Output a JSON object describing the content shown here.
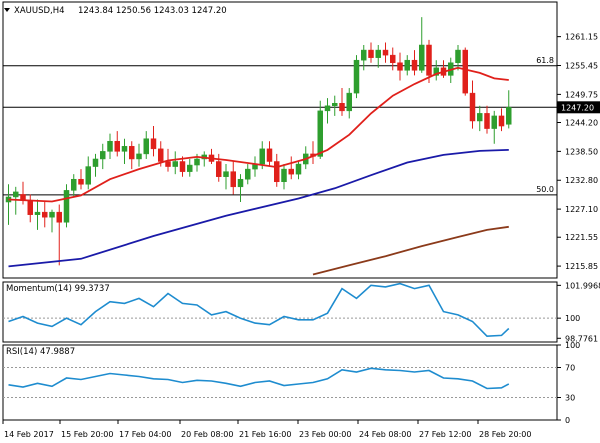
{
  "chart_data": {
    "type": "candlestick",
    "symbol_header": "XAUUSD,H4",
    "ohlc_header": "1243.84 1250.56 1243.03 1247.20",
    "colors": {
      "bull": "#2e9e2e",
      "bear": "#e0201b",
      "sma20": "#e0201b",
      "sma100": "#1a1aa8",
      "sma200": "#8b3a1a",
      "indicator": "#1e8ccf",
      "grid_line": "#000000",
      "price_tag_bg": "#000000"
    },
    "price_axis": {
      "range": [
        1213.5,
        1267.2
      ],
      "ticks": [
        "1261.15",
        "1255.45",
        "1249.75",
        "1244.20",
        "1238.50",
        "1232.80",
        "1227.10",
        "1221.55",
        "1215.85"
      ],
      "current_price_label": "1247.20"
    },
    "horizontal_levels": [
      {
        "label": "61.8",
        "value": 1255.4
      },
      {
        "label": "",
        "value": 1247.2
      },
      {
        "label": "50.0",
        "value": 1229.9
      }
    ],
    "x_labels": [
      "14 Feb 2017",
      "15 Feb 20:00",
      "17 Feb 04:00",
      "20 Feb 08:00",
      "21 Feb 16:00",
      "23 Feb 00:00",
      "24 Feb 08:00",
      "27 Feb 12:00",
      "28 Feb 20:00"
    ],
    "candles": [
      [
        1228.5,
        1232.0,
        1224.0,
        1229.5
      ],
      [
        1229.5,
        1231.5,
        1226.0,
        1230.5
      ],
      [
        1230.0,
        1232.5,
        1228.0,
        1228.8
      ],
      [
        1228.8,
        1230.0,
        1224.5,
        1226.0
      ],
      [
        1226.0,
        1229.0,
        1223.0,
        1226.5
      ],
      [
        1226.5,
        1228.5,
        1223.5,
        1225.5
      ],
      [
        1225.5,
        1227.0,
        1222.5,
        1226.5
      ],
      [
        1226.5,
        1228.0,
        1216.0,
        1224.5
      ],
      [
        1224.5,
        1232.0,
        1223.5,
        1230.8
      ],
      [
        1230.8,
        1234.0,
        1229.5,
        1233.0
      ],
      [
        1233.0,
        1235.0,
        1231.0,
        1232.0
      ],
      [
        1232.0,
        1237.5,
        1231.0,
        1235.5
      ],
      [
        1235.5,
        1238.0,
        1233.5,
        1237.0
      ],
      [
        1237.0,
        1240.0,
        1235.0,
        1238.5
      ],
      [
        1238.5,
        1242.0,
        1237.0,
        1240.5
      ],
      [
        1240.5,
        1242.5,
        1237.5,
        1238.5
      ],
      [
        1238.5,
        1241.0,
        1236.0,
        1239.5
      ],
      [
        1239.5,
        1240.5,
        1235.0,
        1237.0
      ],
      [
        1237.0,
        1240.0,
        1235.5,
        1238.0
      ],
      [
        1238.0,
        1242.5,
        1237.0,
        1241.0
      ],
      [
        1241.0,
        1243.5,
        1237.5,
        1239.0
      ],
      [
        1239.0,
        1240.5,
        1235.5,
        1236.5
      ],
      [
        1236.5,
        1239.0,
        1234.5,
        1235.5
      ],
      [
        1235.5,
        1238.5,
        1234.0,
        1236.5
      ],
      [
        1236.5,
        1237.5,
        1233.5,
        1234.5
      ],
      [
        1234.5,
        1237.0,
        1233.5,
        1235.8
      ],
      [
        1235.8,
        1238.0,
        1234.5,
        1237.0
      ],
      [
        1237.0,
        1238.5,
        1235.5,
        1237.8
      ],
      [
        1237.8,
        1239.0,
        1236.0,
        1236.5
      ],
      [
        1236.5,
        1238.0,
        1232.5,
        1233.5
      ],
      [
        1233.5,
        1236.0,
        1231.0,
        1234.5
      ],
      [
        1234.5,
        1236.5,
        1230.0,
        1231.5
      ],
      [
        1231.5,
        1234.0,
        1228.5,
        1233.0
      ],
      [
        1233.0,
        1236.0,
        1232.0,
        1235.0
      ],
      [
        1235.0,
        1237.5,
        1233.5,
        1236.0
      ],
      [
        1236.0,
        1240.5,
        1235.0,
        1239.0
      ],
      [
        1239.0,
        1240.5,
        1235.5,
        1236.5
      ],
      [
        1236.5,
        1238.0,
        1231.5,
        1232.5
      ],
      [
        1232.5,
        1236.0,
        1231.0,
        1235.0
      ],
      [
        1235.0,
        1237.5,
        1233.0,
        1234.0
      ],
      [
        1234.0,
        1236.5,
        1233.0,
        1236.0
      ],
      [
        1236.0,
        1239.5,
        1235.0,
        1238.0
      ],
      [
        1238.0,
        1240.5,
        1236.0,
        1237.5
      ],
      [
        1237.5,
        1248.5,
        1237.0,
        1246.5
      ],
      [
        1246.5,
        1249.0,
        1244.0,
        1247.5
      ],
      [
        1247.5,
        1249.5,
        1245.5,
        1248.0
      ],
      [
        1248.0,
        1251.0,
        1245.5,
        1246.5
      ],
      [
        1246.5,
        1251.0,
        1245.0,
        1250.0
      ],
      [
        1250.0,
        1257.5,
        1249.0,
        1256.5
      ],
      [
        1256.5,
        1259.5,
        1254.5,
        1258.5
      ],
      [
        1258.5,
        1260.0,
        1256.0,
        1257.0
      ],
      [
        1257.0,
        1259.5,
        1255.0,
        1258.5
      ],
      [
        1258.5,
        1260.0,
        1256.0,
        1257.5
      ],
      [
        1257.5,
        1259.0,
        1254.5,
        1256.0
      ],
      [
        1256.0,
        1258.0,
        1252.5,
        1254.5
      ],
      [
        1254.5,
        1257.5,
        1253.5,
        1256.5
      ],
      [
        1256.5,
        1258.5,
        1253.5,
        1254.5
      ],
      [
        1254.5,
        1265.0,
        1254.0,
        1259.5
      ],
      [
        1259.5,
        1260.5,
        1252.0,
        1253.5
      ],
      [
        1253.5,
        1256.5,
        1252.5,
        1255.0
      ],
      [
        1255.0,
        1256.5,
        1253.0,
        1253.5
      ],
      [
        1253.5,
        1257.0,
        1252.0,
        1256.0
      ],
      [
        1256.0,
        1259.5,
        1254.5,
        1258.5
      ],
      [
        1258.5,
        1259.0,
        1249.5,
        1250.0
      ],
      [
        1250.0,
        1252.5,
        1243.0,
        1244.5
      ],
      [
        1244.5,
        1247.5,
        1242.5,
        1246.0
      ],
      [
        1246.0,
        1247.5,
        1242.0,
        1243.0
      ],
      [
        1243.0,
        1246.5,
        1240.0,
        1245.5
      ],
      [
        1245.5,
        1247.0,
        1242.5,
        1243.5
      ],
      [
        1243.84,
        1250.56,
        1243.03,
        1247.2
      ]
    ],
    "moving_averages": [
      {
        "period": 20,
        "color_key": "sma20",
        "values": [
          [
            0,
            1229.0
          ],
          [
            6,
            1228.6
          ],
          [
            10,
            1229.8
          ],
          [
            14,
            1233.0
          ],
          [
            18,
            1235.0
          ],
          [
            22,
            1236.7
          ],
          [
            26,
            1237.4
          ],
          [
            30,
            1236.8
          ],
          [
            34,
            1236.0
          ],
          [
            37,
            1235.4
          ],
          [
            41,
            1237.0
          ],
          [
            44,
            1238.8
          ],
          [
            47,
            1241.8
          ],
          [
            50,
            1246.0
          ],
          [
            53,
            1249.5
          ],
          [
            56,
            1251.8
          ],
          [
            59,
            1253.8
          ],
          [
            62,
            1255.0
          ],
          [
            65,
            1254.0
          ],
          [
            67,
            1252.9
          ],
          [
            69,
            1252.6
          ]
        ]
      },
      {
        "period": 100,
        "color_key": "sma100",
        "values": [
          [
            0,
            1215.8
          ],
          [
            10,
            1217.3
          ],
          [
            20,
            1221.8
          ],
          [
            30,
            1225.8
          ],
          [
            40,
            1229.2
          ],
          [
            45,
            1231.2
          ],
          [
            50,
            1233.8
          ],
          [
            55,
            1236.3
          ],
          [
            60,
            1237.8
          ],
          [
            65,
            1238.6
          ],
          [
            69,
            1238.8
          ]
        ]
      },
      {
        "period": 200,
        "color_key": "sma200",
        "values": [
          [
            42,
            1214.2
          ],
          [
            47,
            1216.0
          ],
          [
            52,
            1217.8
          ],
          [
            57,
            1219.8
          ],
          [
            62,
            1221.6
          ],
          [
            66,
            1223.0
          ],
          [
            69,
            1223.6
          ]
        ]
      }
    ],
    "momentum": {
      "header": "Momentum(14) 99.3737",
      "ticks": [
        "101.9968",
        "100",
        "98.7761"
      ],
      "range": [
        98.55,
        102.2
      ],
      "reference": 100,
      "values": [
        [
          0,
          99.8
        ],
        [
          2,
          100.1
        ],
        [
          4,
          99.7
        ],
        [
          6,
          99.5
        ],
        [
          8,
          100.0
        ],
        [
          10,
          99.6
        ],
        [
          12,
          100.4
        ],
        [
          14,
          101.0
        ],
        [
          16,
          100.9
        ],
        [
          18,
          101.2
        ],
        [
          20,
          100.7
        ],
        [
          22,
          101.5
        ],
        [
          24,
          100.9
        ],
        [
          26,
          100.8
        ],
        [
          28,
          100.2
        ],
        [
          30,
          100.4
        ],
        [
          32,
          100.0
        ],
        [
          34,
          99.7
        ],
        [
          36,
          99.6
        ],
        [
          38,
          100.1
        ],
        [
          40,
          99.9
        ],
        [
          42,
          99.9
        ],
        [
          44,
          100.3
        ],
        [
          46,
          101.8
        ],
        [
          48,
          101.2
        ],
        [
          50,
          102.0
        ],
        [
          52,
          101.9
        ],
        [
          54,
          102.1
        ],
        [
          56,
          101.8
        ],
        [
          58,
          102.0
        ],
        [
          60,
          100.4
        ],
        [
          62,
          100.2
        ],
        [
          64,
          99.8
        ],
        [
          66,
          98.9
        ],
        [
          68,
          98.95
        ],
        [
          69,
          99.37
        ]
      ]
    },
    "rsi": {
      "header": "RSI(14) 47.9887",
      "ticks": [
        "100",
        "70",
        "30",
        "0"
      ],
      "range": [
        0,
        100
      ],
      "levels": [
        70,
        30
      ],
      "values": [
        [
          0,
          47
        ],
        [
          2,
          44
        ],
        [
          4,
          49
        ],
        [
          6,
          45
        ],
        [
          8,
          56
        ],
        [
          10,
          54
        ],
        [
          12,
          58
        ],
        [
          14,
          62
        ],
        [
          16,
          60
        ],
        [
          18,
          58
        ],
        [
          20,
          55
        ],
        [
          22,
          54
        ],
        [
          24,
          50
        ],
        [
          26,
          53
        ],
        [
          28,
          52
        ],
        [
          30,
          49
        ],
        [
          32,
          45
        ],
        [
          34,
          50
        ],
        [
          36,
          52
        ],
        [
          38,
          46
        ],
        [
          40,
          48
        ],
        [
          42,
          50
        ],
        [
          44,
          55
        ],
        [
          46,
          67
        ],
        [
          48,
          64
        ],
        [
          50,
          69
        ],
        [
          52,
          67
        ],
        [
          54,
          66
        ],
        [
          56,
          64
        ],
        [
          58,
          66
        ],
        [
          60,
          56
        ],
        [
          62,
          55
        ],
        [
          64,
          52
        ],
        [
          66,
          42
        ],
        [
          68,
          43
        ],
        [
          69,
          47.99
        ]
      ]
    }
  }
}
